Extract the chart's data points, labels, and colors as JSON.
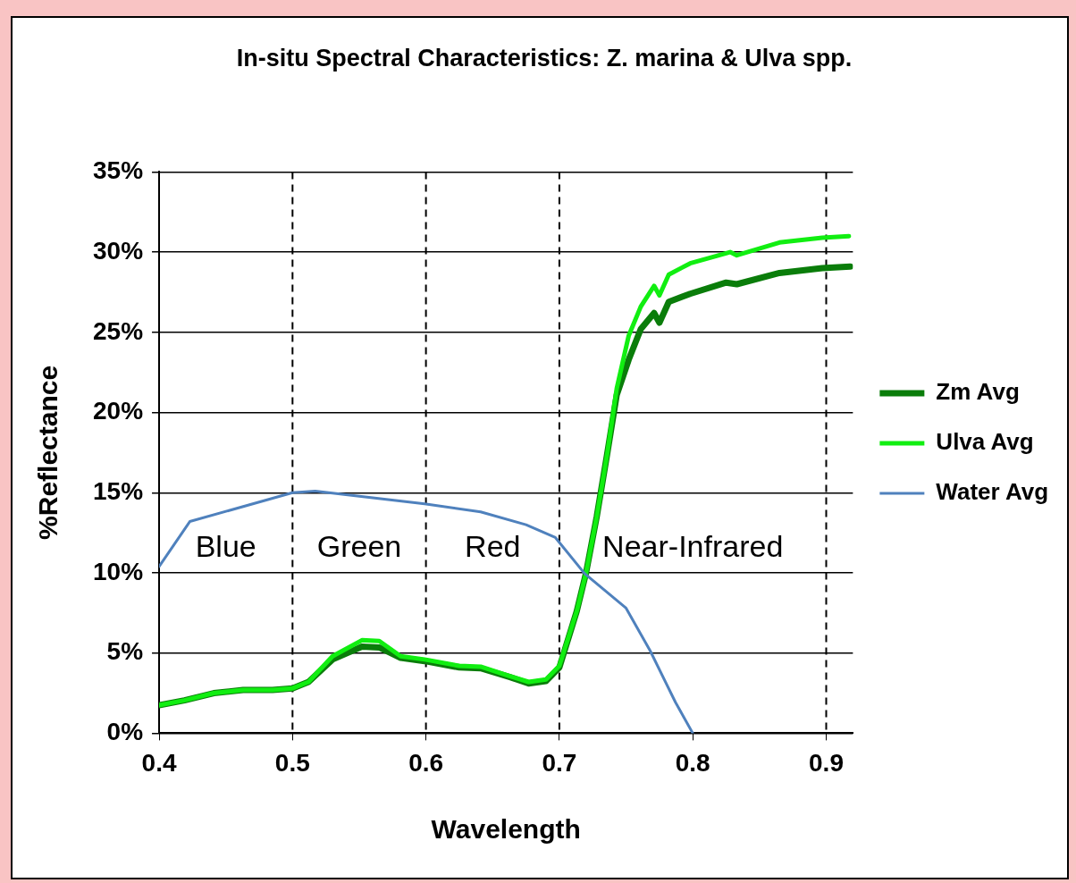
{
  "chart_data": {
    "type": "line",
    "title": "In-situ Spectral Characteristics: Z. marina & Ulva spp.",
    "xlabel": "Wavelength",
    "ylabel": "%Reflectance",
    "xlim": [
      0.4,
      0.92
    ],
    "xticks": [
      0.4,
      0.5,
      0.6,
      0.7,
      0.8,
      0.9
    ],
    "ylim": [
      0,
      35
    ],
    "yticks": [
      {
        "value": 0,
        "label": "0%"
      },
      {
        "value": 5,
        "label": "5%"
      },
      {
        "value": 10,
        "label": "10%"
      },
      {
        "value": 15,
        "label": "15%"
      },
      {
        "value": 20,
        "label": "20%"
      },
      {
        "value": 25,
        "label": "25%"
      },
      {
        "value": 30,
        "label": "30%"
      },
      {
        "value": 35,
        "label": "35%"
      }
    ],
    "grid": "y",
    "legend": "right",
    "marker": "none",
    "line_style": "solid",
    "series": [
      {
        "name": "Zm Avg",
        "color": "#0a7d0a",
        "x": [
          0.4,
          0.419,
          0.441,
          0.463,
          0.485,
          0.5,
          0.512,
          0.53,
          0.552,
          0.565,
          0.581,
          0.599,
          0.625,
          0.641,
          0.663,
          0.677,
          0.69,
          0.7,
          0.713,
          0.72,
          0.728,
          0.736,
          0.743,
          0.752,
          0.761,
          0.771,
          0.775,
          0.782,
          0.798,
          0.825,
          0.833,
          0.865,
          0.897,
          0.918
        ],
        "values": [
          1.75,
          2.05,
          2.5,
          2.7,
          2.7,
          2.8,
          3.2,
          4.6,
          5.4,
          5.35,
          4.7,
          4.5,
          4.1,
          4.05,
          3.5,
          3.1,
          3.25,
          4.1,
          7.6,
          10.0,
          13.5,
          17.5,
          21.1,
          23.3,
          25.2,
          26.2,
          25.6,
          26.9,
          27.4,
          28.1,
          28.0,
          28.7,
          29.0,
          29.1
        ]
      },
      {
        "name": "Ulva Avg",
        "color": "#11ee11",
        "x": [
          0.4,
          0.419,
          0.441,
          0.463,
          0.485,
          0.5,
          0.512,
          0.53,
          0.552,
          0.565,
          0.581,
          0.599,
          0.625,
          0.641,
          0.663,
          0.677,
          0.69,
          0.7,
          0.713,
          0.72,
          0.728,
          0.736,
          0.743,
          0.752,
          0.761,
          0.771,
          0.775,
          0.782,
          0.798,
          0.828,
          0.833,
          0.865,
          0.897,
          0.917
        ],
        "values": [
          1.75,
          2.05,
          2.5,
          2.7,
          2.7,
          2.8,
          3.2,
          4.8,
          5.8,
          5.75,
          4.8,
          4.6,
          4.2,
          4.15,
          3.55,
          3.2,
          3.35,
          4.2,
          7.6,
          10.0,
          13.5,
          17.5,
          21.5,
          24.8,
          26.6,
          27.9,
          27.3,
          28.6,
          29.3,
          30.0,
          29.8,
          30.6,
          30.9,
          31.0
        ]
      },
      {
        "name": "Water Avg",
        "color": "#4f81bd",
        "x": [
          0.4,
          0.423,
          0.5,
          0.517,
          0.599,
          0.641,
          0.675,
          0.697,
          0.719,
          0.75,
          0.768,
          0.787,
          0.8
        ],
        "values": [
          10.4,
          13.2,
          15.0,
          15.1,
          14.3,
          13.8,
          13.0,
          12.2,
          9.95,
          7.8,
          5.15,
          1.93,
          0
        ]
      }
    ],
    "ref_lines": [
      {
        "axis": "x",
        "value": 0.5,
        "color": "#000000",
        "line_style": "dashed"
      },
      {
        "axis": "x",
        "value": 0.6,
        "color": "#000000",
        "line_style": "dashed"
      },
      {
        "axis": "x",
        "value": 0.7,
        "color": "#000000",
        "line_style": "dashed"
      },
      {
        "axis": "x",
        "value": 0.9,
        "color": "#000000",
        "line_style": "dashed"
      }
    ],
    "annotations": [
      "Blue",
      "Green",
      "Red",
      "Near-Infrared"
    ]
  }
}
